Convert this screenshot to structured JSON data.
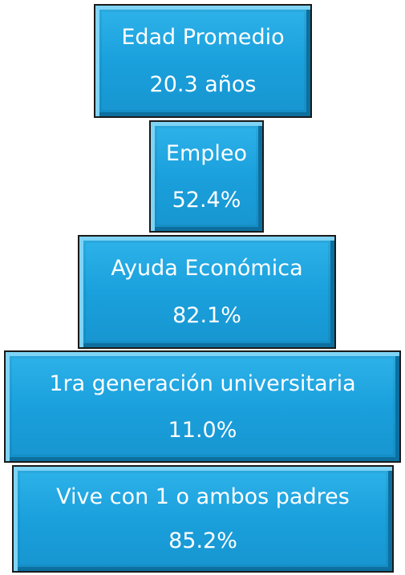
{
  "boxes": [
    {
      "label": "Edad Promedio",
      "value": "20.3 años"
    },
    {
      "label": "Empleo",
      "value": "52.4%"
    },
    {
      "label": "Ayuda Económica",
      "value": "82.1%"
    },
    {
      "label": "1ra generación universitaria",
      "value": "11.0%"
    },
    {
      "label": "Vive con 1 o ambos padres",
      "value": "85.2%"
    }
  ]
}
